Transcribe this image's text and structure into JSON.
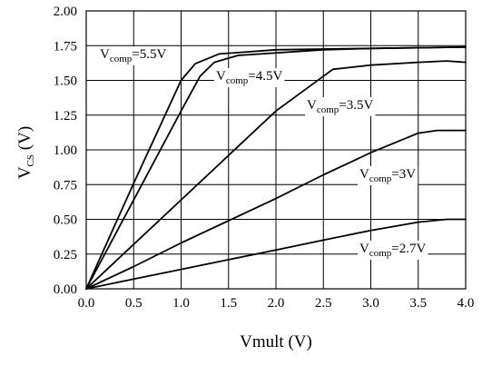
{
  "chart_data": {
    "type": "line",
    "xlabel": "Vmult (V)",
    "ylabel_main": "V",
    "ylabel_sub": "CS",
    "ylabel_unit": " (V)",
    "xlim": [
      0,
      4
    ],
    "ylim": [
      0,
      2
    ],
    "x_ticks": [
      "0.0",
      "0.5",
      "1.0",
      "1.5",
      "2.0",
      "2.5",
      "3.0",
      "3.5",
      "4.0"
    ],
    "y_ticks": [
      "0.00",
      "0.25",
      "0.50",
      "0.75",
      "1.00",
      "1.25",
      "1.50",
      "1.75",
      "2.00"
    ],
    "grid": true,
    "series": [
      {
        "label_main": "V",
        "label_sub": "comp",
        "label_value": "=5.5V",
        "points": [
          [
            0,
            0
          ],
          [
            0.5,
            0.76
          ],
          [
            1.0,
            1.5
          ],
          [
            1.15,
            1.62
          ],
          [
            1.4,
            1.69
          ],
          [
            2.0,
            1.72
          ],
          [
            3.0,
            1.73
          ],
          [
            4.0,
            1.74
          ]
        ]
      },
      {
        "label_main": "V",
        "label_sub": "comp",
        "label_value": "=4.5V",
        "points": [
          [
            0,
            0
          ],
          [
            0.5,
            0.64
          ],
          [
            1.0,
            1.28
          ],
          [
            1.2,
            1.53
          ],
          [
            1.35,
            1.63
          ],
          [
            1.6,
            1.68
          ],
          [
            2.5,
            1.72
          ],
          [
            3.0,
            1.73
          ],
          [
            4.0,
            1.74
          ]
        ]
      },
      {
        "label_main": "V",
        "label_sub": "comp",
        "label_value": "=3.5V",
        "points": [
          [
            0,
            0
          ],
          [
            0.5,
            0.32
          ],
          [
            1.0,
            0.64
          ],
          [
            1.5,
            0.96
          ],
          [
            2.0,
            1.28
          ],
          [
            2.6,
            1.58
          ],
          [
            3.0,
            1.61
          ],
          [
            3.5,
            1.63
          ],
          [
            3.8,
            1.64
          ],
          [
            4.0,
            1.63
          ]
        ]
      },
      {
        "label_main": "V",
        "label_sub": "comp",
        "label_value": "=3V",
        "points": [
          [
            0,
            0
          ],
          [
            0.5,
            0.16
          ],
          [
            1.0,
            0.33
          ],
          [
            1.5,
            0.49
          ],
          [
            2.0,
            0.65
          ],
          [
            2.5,
            0.82
          ],
          [
            3.0,
            0.98
          ],
          [
            3.5,
            1.12
          ],
          [
            3.7,
            1.14
          ],
          [
            4.0,
            1.14
          ]
        ]
      },
      {
        "label_main": "V",
        "label_sub": "comp",
        "label_value": "=2.7V",
        "points": [
          [
            0,
            0
          ],
          [
            0.5,
            0.07
          ],
          [
            1.0,
            0.14
          ],
          [
            1.5,
            0.21
          ],
          [
            2.0,
            0.28
          ],
          [
            2.5,
            0.35
          ],
          [
            3.0,
            0.42
          ],
          [
            3.5,
            0.48
          ],
          [
            3.8,
            0.5
          ],
          [
            4.0,
            0.5
          ]
        ]
      }
    ]
  }
}
